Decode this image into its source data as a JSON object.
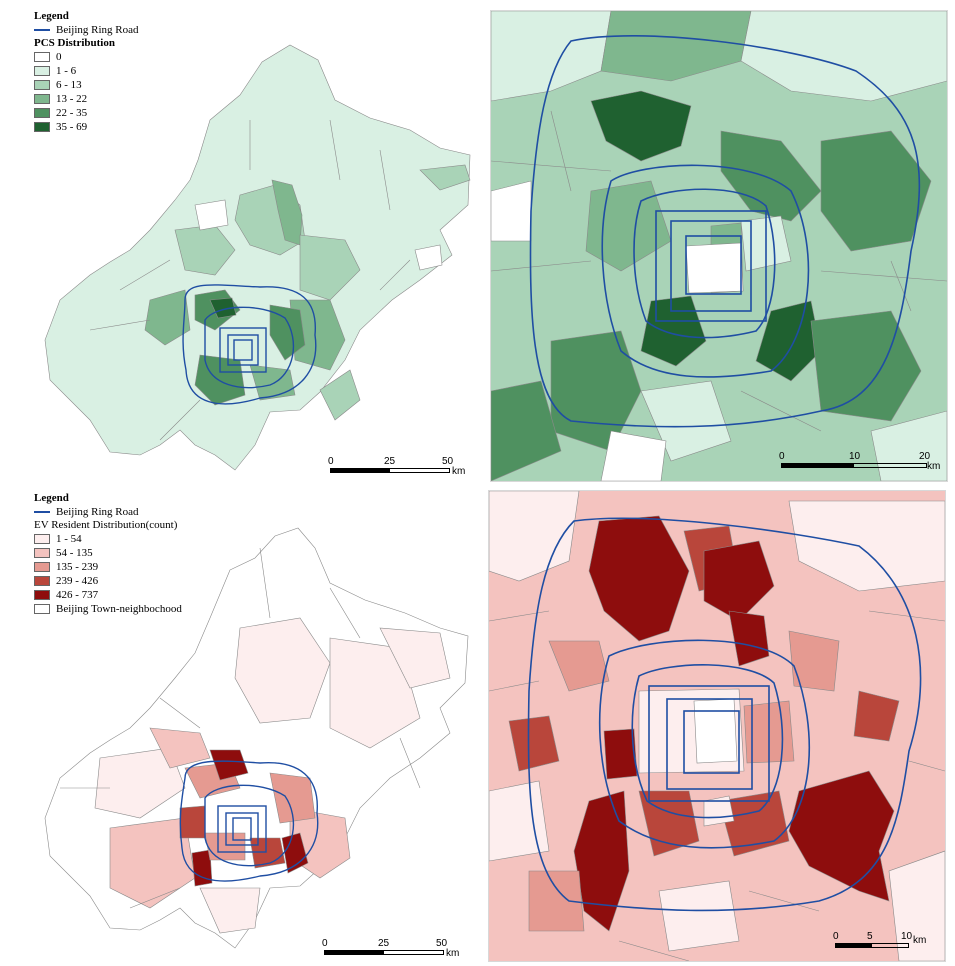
{
  "top": {
    "legend": {
      "title": "Legend",
      "road_label": "Beijing Ring Road",
      "dist_title": "PCS Distribution",
      "classes": [
        {
          "label": "0",
          "color": "#ffffff"
        },
        {
          "label": "1 - 6",
          "color": "#d9f0e3"
        },
        {
          "label": "6 - 13",
          "color": "#a9d3b7"
        },
        {
          "label": "13 - 22",
          "color": "#7fb78e"
        },
        {
          "label": "22 - 35",
          "color": "#4f9160"
        },
        {
          "label": "35 - 69",
          "color": "#1f6130"
        }
      ]
    },
    "scale_left": {
      "labels": [
        "0",
        "25",
        "50"
      ],
      "unit": "km"
    },
    "scale_right": {
      "labels": [
        "0",
        "10",
        "20"
      ],
      "unit": "km"
    }
  },
  "bottom": {
    "legend": {
      "title": "Legend",
      "road_label": "Beijing Ring Road",
      "dist_title": "EV Resident Distribution(count)",
      "classes": [
        {
          "label": "1 - 54",
          "color": "#fdeeee"
        },
        {
          "label": "54  - 135",
          "color": "#f4c3bf"
        },
        {
          "label": "135  - 239",
          "color": "#e59a91"
        },
        {
          "label": "239  - 426",
          "color": "#b9463b"
        },
        {
          "label": "426 - 737",
          "color": "#8e0d0d"
        }
      ],
      "boundary_label": "Beijing Town-neighbochood"
    },
    "scale_left": {
      "labels": [
        "0",
        "25",
        "50"
      ],
      "unit": "km"
    },
    "scale_right": {
      "labels": [
        "0",
        "5",
        "10"
      ],
      "unit": "km"
    }
  },
  "colors": {
    "ring_road": "#1f4ea3",
    "boundary": "#8a8a8a"
  }
}
